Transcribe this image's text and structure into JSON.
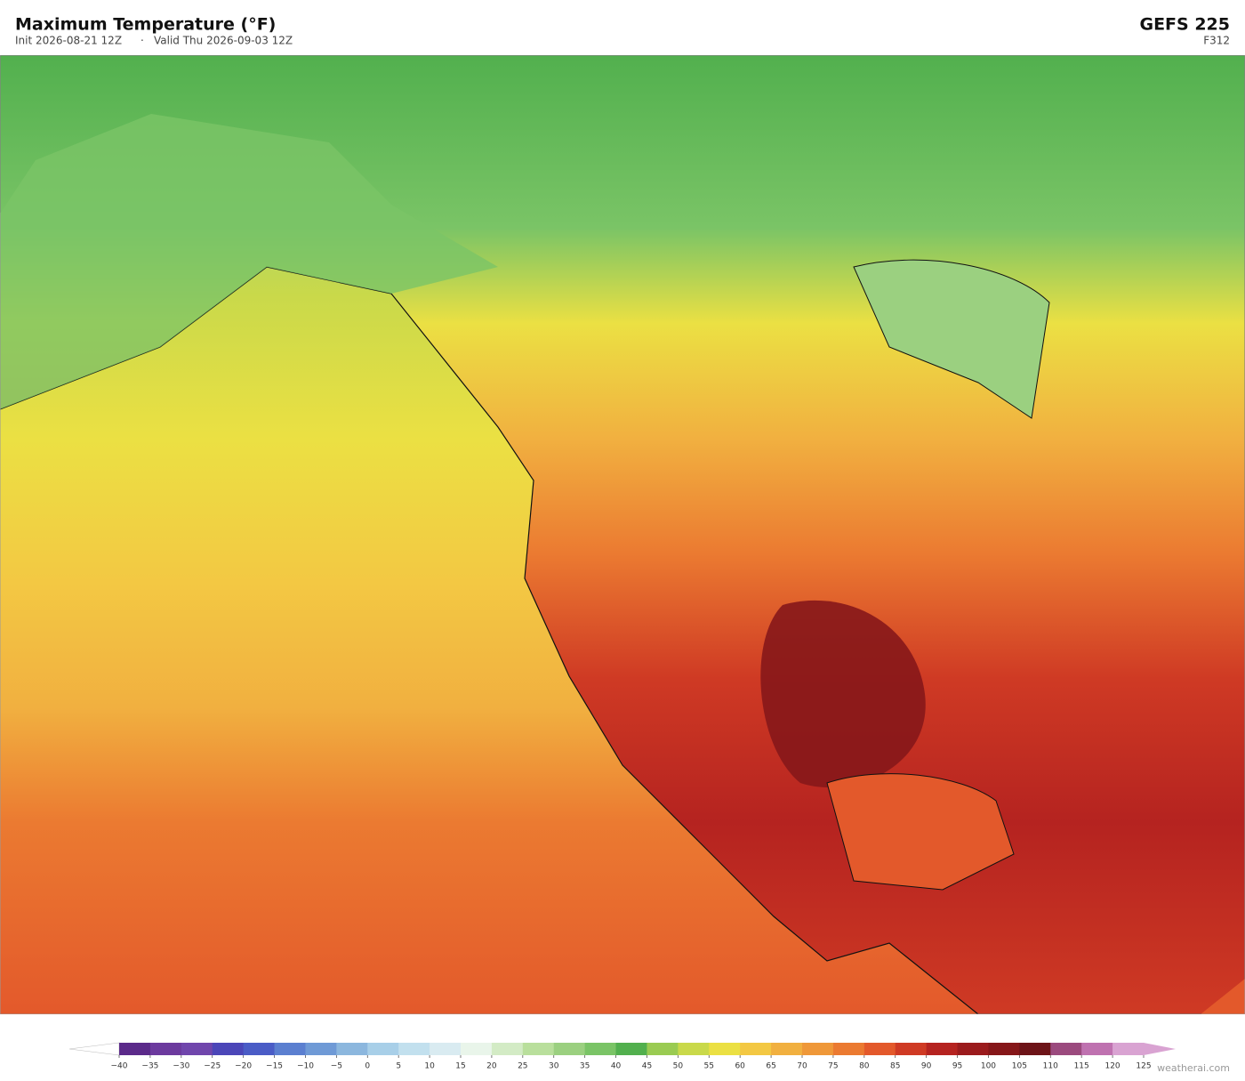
{
  "header": {
    "title": "Maximum Temperature  (°F)",
    "init": "Init 2026-08-21 12Z",
    "separator": "·",
    "valid": "Valid Thu 2026-09-03 12Z",
    "model": "GEFS  225",
    "forecast": "F312"
  },
  "colorbar": {
    "ticks": [
      {
        "value": -40,
        "label": "−40"
      },
      {
        "value": -35,
        "label": "−35"
      },
      {
        "value": -30,
        "label": "−30"
      },
      {
        "value": -25,
        "label": "−25"
      },
      {
        "value": -20,
        "label": "−20"
      },
      {
        "value": -15,
        "label": "−15"
      },
      {
        "value": -10,
        "label": "−10"
      },
      {
        "value": -5,
        "label": "−5"
      },
      0,
      5,
      10,
      15,
      20,
      25,
      30,
      35,
      40,
      45,
      50,
      55,
      60,
      65,
      70,
      75,
      80,
      85,
      90,
      95,
      100,
      105,
      110,
      115,
      120,
      125
    ],
    "colors": [
      "#5b2a8a",
      "#6c3a9e",
      "#7046ac",
      "#4b46b8",
      "#4a5cc6",
      "#5b7fd0",
      "#6f9ad6",
      "#8cb7de",
      "#a8cfe8",
      "#c2e0ee",
      "#d9ebf1",
      "#e9f5ea",
      "#d3ebc5",
      "#b9df9c",
      "#9bd080",
      "#7ac466",
      "#52b04e",
      "#9acb52",
      "#c9d94a",
      "#ebe043",
      "#f3c843",
      "#f1b040",
      "#ef9839",
      "#eb7a31",
      "#e3592b",
      "#cf3a24",
      "#b52320",
      "#9b1b1d",
      "#861719",
      "#6d1418",
      "#9b4a7e",
      "#bf72b0",
      "#d9a3d2"
    ],
    "under_color": "#ffffff",
    "over_color": "#d9a3d2"
  },
  "credit": "weatherai.com"
}
